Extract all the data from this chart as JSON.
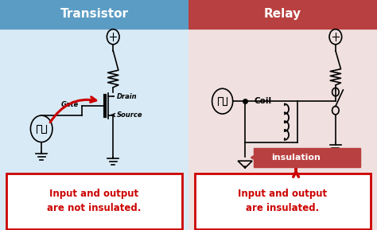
{
  "left_title": "Transistor",
  "right_title": "Relay",
  "left_bg": "#5b9cc4",
  "right_bg": "#b94040",
  "left_panel_bg": "#d8eaf5",
  "right_panel_bg": "#f0e0e0",
  "left_text": "Input and output\nare not insulated.",
  "right_text": "Input and output\nare insulated.",
  "red_color": "#cc0000",
  "insulation_bg": "#b94040",
  "drain_label": "Drain",
  "gate_label": "Gate",
  "source_label": "Source",
  "coil_label": "Coil",
  "insulation_label": "insulation",
  "black": "#000000",
  "white": "#ffffff",
  "title_fontsize": 11,
  "label_fontsize": 6,
  "text_fontsize": 8.5
}
